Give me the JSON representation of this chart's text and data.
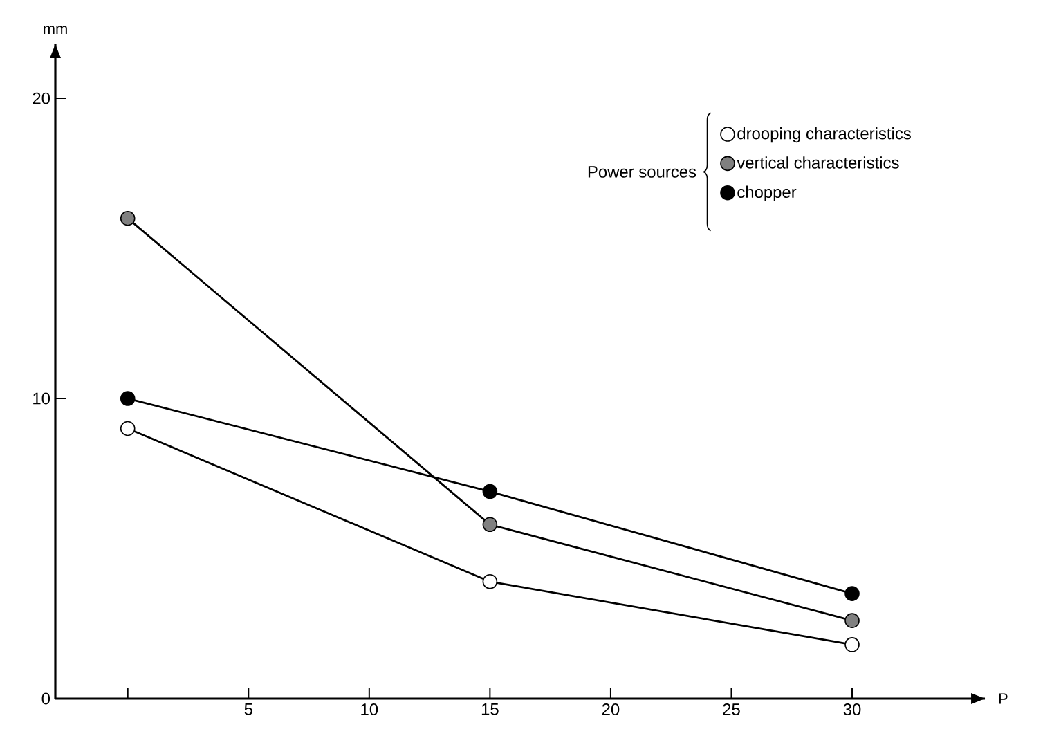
{
  "chart_data": {
    "type": "line",
    "xlabel": "P",
    "ylabel": "mm",
    "legend_title": "Power sources",
    "legend": "top right",
    "marker": "circle",
    "x": [
      0,
      15,
      30
    ],
    "xlim": [
      -3,
      35.5
    ],
    "ylim": [
      0,
      21.8
    ],
    "xticks": [
      {
        "value": 0,
        "label": null
      },
      5,
      10,
      15,
      20,
      25,
      30
    ],
    "yticks": [
      {
        "value": 0,
        "label": "0"
      },
      10,
      20
    ],
    "series": [
      {
        "name": "drooping characteristics",
        "color": "#ffffff",
        "values": [
          9,
          3.9,
          1.8
        ]
      },
      {
        "name": "vertical characteristics",
        "color": "#808080",
        "values": [
          16,
          5.8,
          2.6
        ]
      },
      {
        "name": "chopper",
        "color": "#000000",
        "values": [
          10,
          6.9,
          3.5
        ]
      }
    ]
  }
}
